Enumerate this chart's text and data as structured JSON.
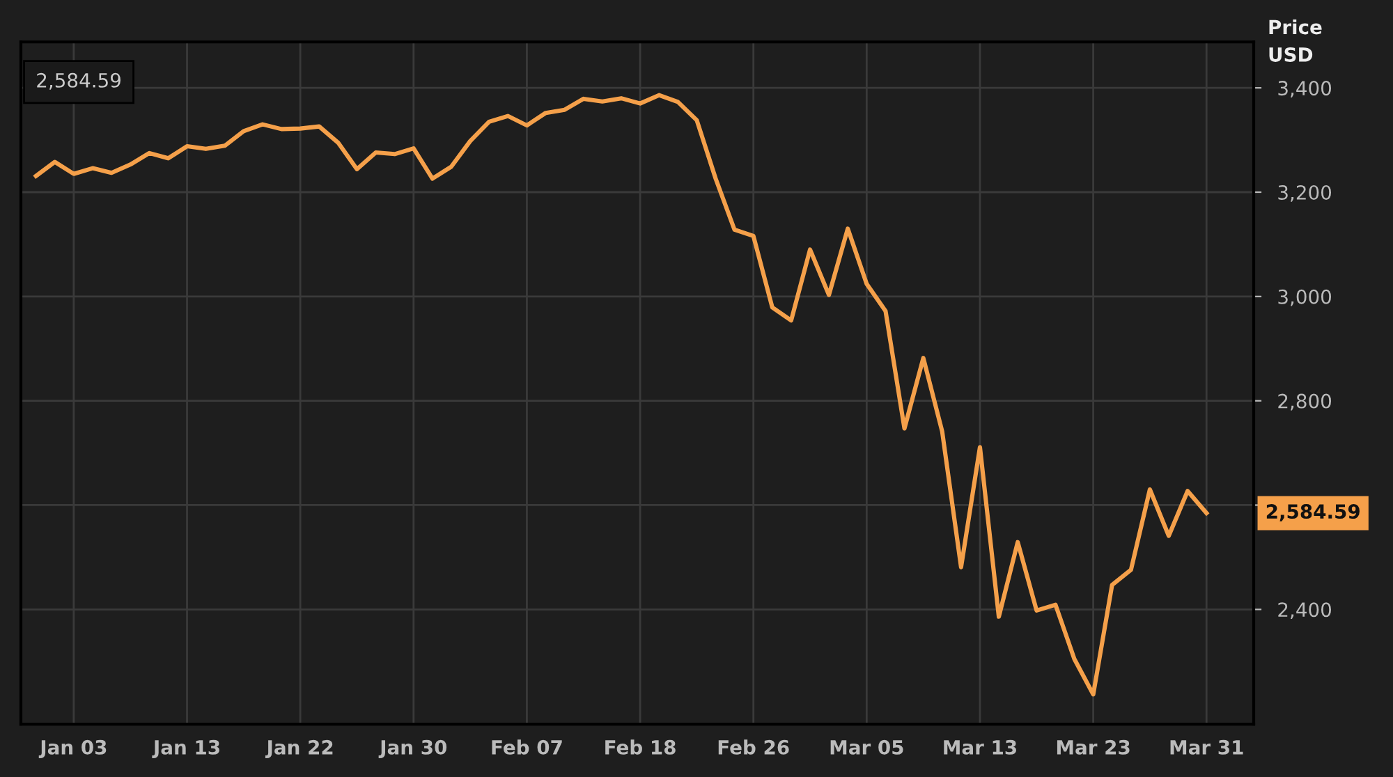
{
  "chart_data": {
    "type": "line",
    "ylabel": "Price\nUSD",
    "categories": [
      null,
      null,
      "Jan 03",
      null,
      null,
      null,
      null,
      null,
      "Jan 13",
      null,
      null,
      null,
      null,
      null,
      "Jan 22",
      null,
      null,
      null,
      null,
      null,
      "Jan 30",
      null,
      null,
      null,
      null,
      null,
      "Feb 07",
      null,
      null,
      null,
      null,
      null,
      "Feb 18",
      null,
      null,
      null,
      null,
      null,
      "Feb 26",
      null,
      null,
      null,
      null,
      null,
      "Mar 05",
      null,
      null,
      null,
      null,
      null,
      "Mar 13",
      null,
      null,
      null,
      null,
      null,
      "Mar 23",
      null,
      null,
      null,
      null,
      null,
      "Mar 31"
    ],
    "series": [
      {
        "color": "#f5a04a",
        "values": [
          3231,
          3258,
          3235,
          3246,
          3237,
          3253,
          3275,
          3265,
          3288,
          3283,
          3289,
          3317,
          3330,
          3321,
          3322,
          3326,
          3295,
          3244,
          3276,
          3273,
          3284,
          3226,
          3249,
          3298,
          3335,
          3346,
          3328,
          3352,
          3358,
          3379,
          3374,
          3380,
          3370,
          3386,
          3373,
          3338,
          3226,
          3128,
          3116,
          2979,
          2954,
          3090,
          3003,
          3130,
          3024,
          2972,
          2747,
          2882,
          2741,
          2481,
          2711,
          2386,
          2529,
          2398,
          2409,
          2305,
          2237,
          2447,
          2476,
          2630,
          2541,
          2627,
          2584.59
        ]
      }
    ],
    "ylim": [
      2180,
      3488
    ],
    "yticks": [
      {
        "value": 2400,
        "label": "2,400"
      },
      {
        "value": 2600,
        "label": null
      },
      {
        "value": 2800,
        "label": "2,800"
      },
      {
        "value": 3000,
        "label": "3,000"
      },
      {
        "value": 3200,
        "label": "3,200"
      },
      {
        "value": 3400,
        "label": "3,400"
      }
    ],
    "grid": true,
    "marker": "none",
    "line_style": "solid",
    "annotations": [
      "2,584.59",
      "2,584.59"
    ]
  }
}
